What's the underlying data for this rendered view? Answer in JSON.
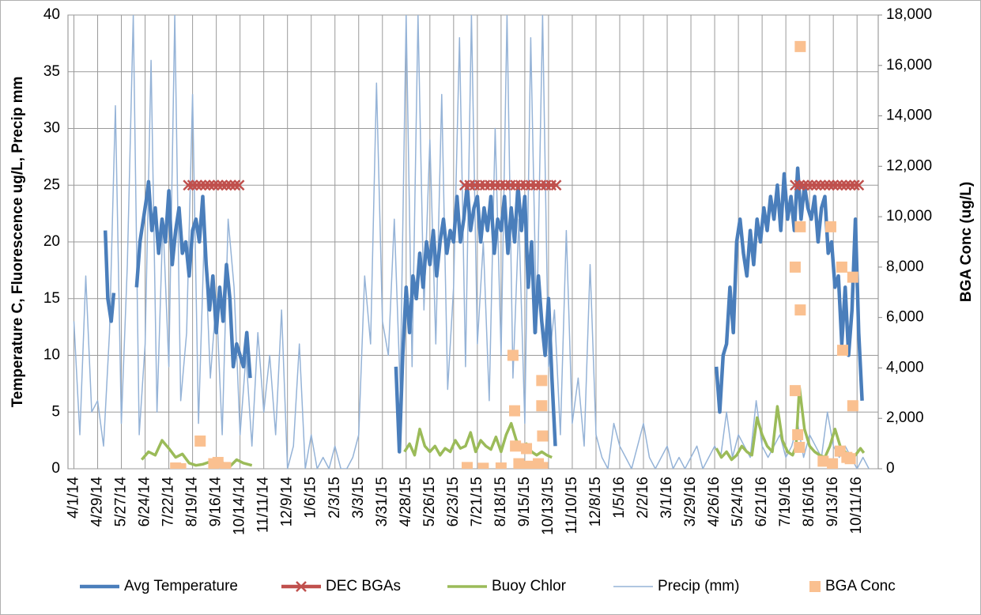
{
  "chart_data": {
    "type": "line",
    "y_label": "Temperature C, Fluorescence ug/L, Precip mm",
    "y2_label": "BGA Conc (ug/L)",
    "xlim": [
      -7,
      949
    ],
    "xticks": [
      {
        "value": 0,
        "label": "4/1/14"
      },
      {
        "value": 28,
        "label": "4/29/14"
      },
      {
        "value": 56,
        "label": "5/27/14"
      },
      {
        "value": 84,
        "label": "6/24/14"
      },
      {
        "value": 112,
        "label": "7/22/14"
      },
      {
        "value": 140,
        "label": "8/19/14"
      },
      {
        "value": 168,
        "label": "9/16/14"
      },
      {
        "value": 196,
        "label": "10/14/14"
      },
      {
        "value": 224,
        "label": "11/11/14"
      },
      {
        "value": 252,
        "label": "12/9/14"
      },
      {
        "value": 280,
        "label": "1/6/15"
      },
      {
        "value": 308,
        "label": "2/3/15"
      },
      {
        "value": 336,
        "label": "3/3/15"
      },
      {
        "value": 364,
        "label": "3/31/15"
      },
      {
        "value": 392,
        "label": "4/28/15"
      },
      {
        "value": 420,
        "label": "5/26/15"
      },
      {
        "value": 448,
        "label": "6/23/15"
      },
      {
        "value": 476,
        "label": "7/21/15"
      },
      {
        "value": 504,
        "label": "8/18/15"
      },
      {
        "value": 532,
        "label": "9/15/15"
      },
      {
        "value": 560,
        "label": "10/13/15"
      },
      {
        "value": 588,
        "label": "11/10/15"
      },
      {
        "value": 616,
        "label": "12/8/15"
      },
      {
        "value": 644,
        "label": "1/5/16"
      },
      {
        "value": 672,
        "label": "2/2/16"
      },
      {
        "value": 700,
        "label": "3/1/16"
      },
      {
        "value": 728,
        "label": "3/29/16"
      },
      {
        "value": 756,
        "label": "4/26/16"
      },
      {
        "value": 784,
        "label": "5/24/16"
      },
      {
        "value": 812,
        "label": "6/21/16"
      },
      {
        "value": 840,
        "label": "7/19/16"
      },
      {
        "value": 868,
        "label": "8/16/16"
      },
      {
        "value": 896,
        "label": "9/13/16"
      },
      {
        "value": 924,
        "label": "10/11/16"
      }
    ],
    "ylim": [
      0,
      40
    ],
    "yticks": [
      0,
      5,
      10,
      15,
      20,
      25,
      30,
      35,
      40
    ],
    "y2lim": [
      0,
      18000
    ],
    "y2ticks": [
      0,
      {
        "value": 2000,
        "label": "2,000"
      },
      {
        "value": 4000,
        "label": "4,000"
      },
      {
        "value": 6000,
        "label": "6,000"
      },
      {
        "value": 8000,
        "label": "8,000"
      },
      {
        "value": 10000,
        "label": "10,000"
      },
      {
        "value": 12000,
        "label": "12,000"
      },
      {
        "value": 14000,
        "label": "14,000"
      },
      {
        "value": 16000,
        "label": "16,000"
      },
      {
        "value": 18000,
        "label": "18,000"
      }
    ],
    "grid": true,
    "legend": "bottom",
    "series": [
      {
        "name": "Precip (mm)",
        "color": "#95b3d7",
        "width": 1.5,
        "x": [
          0,
          7,
          14,
          21,
          28,
          35,
          42,
          49,
          56,
          63,
          70,
          77,
          84,
          91,
          98,
          105,
          112,
          119,
          126,
          133,
          140,
          147,
          154,
          161,
          168,
          175,
          182,
          189,
          196,
          203,
          210,
          217,
          224,
          231,
          238,
          245,
          252,
          259,
          266,
          273,
          280,
          287,
          294,
          301,
          308,
          315,
          322,
          329,
          336,
          343,
          350,
          357,
          364,
          371,
          378,
          385,
          392,
          399,
          406,
          413,
          420,
          427,
          434,
          441,
          448,
          455,
          462,
          469,
          476,
          483,
          490,
          497,
          504,
          511,
          518,
          525,
          532,
          539,
          546,
          553,
          560,
          567,
          574,
          581,
          588,
          595,
          602,
          609,
          616,
          623,
          630,
          637,
          644,
          651,
          658,
          665,
          672,
          679,
          686,
          693,
          700,
          707,
          714,
          721,
          728,
          735,
          742,
          749,
          756,
          763,
          770,
          777,
          784,
          791,
          798,
          805,
          812,
          819,
          826,
          833,
          840,
          847,
          854,
          861,
          868,
          875,
          882,
          889,
          896,
          903,
          910,
          917,
          924,
          931,
          938
        ],
        "values": [
          13,
          3,
          17,
          5,
          6,
          2,
          12,
          32,
          4,
          18,
          40,
          3,
          11,
          36,
          5,
          22,
          9,
          40,
          6,
          12,
          33,
          4,
          21,
          8,
          15,
          3,
          22,
          16,
          3,
          10,
          2,
          12,
          5,
          10,
          3,
          14,
          0,
          2,
          11,
          0,
          3,
          0,
          1,
          0,
          2,
          0,
          0,
          1,
          3,
          17,
          11,
          34,
          13,
          10,
          22,
          7,
          40,
          9,
          40,
          14,
          29,
          11,
          33,
          7,
          16,
          38,
          9,
          40,
          11,
          20,
          6,
          30,
          10,
          40,
          8,
          22,
          4,
          38,
          12,
          40,
          9,
          14,
          3,
          21,
          4,
          8,
          2,
          18,
          3,
          1,
          0,
          4,
          2,
          1,
          0,
          2,
          4,
          1,
          0,
          1,
          2,
          0,
          1,
          0,
          1,
          2,
          0,
          1,
          2,
          1,
          5,
          1,
          3,
          2,
          1,
          6,
          2,
          1,
          2,
          3,
          1,
          2,
          4,
          1,
          3,
          2,
          1,
          5,
          2,
          1,
          2,
          1,
          0,
          1,
          0
        ]
      },
      {
        "name": "Avg Temperature",
        "color": "#4a7ebb",
        "width": 4.5,
        "x": [
          37,
          40,
          44,
          47,
          55,
          74,
          78,
          82,
          86,
          88,
          92,
          96,
          100,
          104,
          108,
          112,
          116,
          120,
          124,
          128,
          132,
          136,
          140,
          144,
          148,
          152,
          156,
          160,
          164,
          168,
          172,
          176,
          180,
          184,
          188,
          192,
          196,
          200,
          204,
          208,
          220,
          380,
          384,
          388,
          392,
          396,
          400,
          404,
          408,
          412,
          416,
          420,
          424,
          428,
          432,
          436,
          440,
          444,
          448,
          452,
          456,
          460,
          464,
          468,
          472,
          476,
          480,
          484,
          488,
          492,
          496,
          500,
          504,
          508,
          512,
          516,
          520,
          524,
          528,
          532,
          536,
          540,
          544,
          548,
          552,
          556,
          560,
          564,
          568,
          580,
          758,
          762,
          766,
          770,
          774,
          778,
          782,
          786,
          790,
          794,
          798,
          802,
          806,
          810,
          814,
          818,
          822,
          826,
          830,
          834,
          838,
          842,
          846,
          850,
          854,
          858,
          862,
          866,
          870,
          874,
          878,
          882,
          886,
          890,
          894,
          898,
          902,
          906,
          910,
          914,
          918,
          922,
          926,
          930
        ],
        "values": [
          21,
          15,
          13,
          15.5,
          null,
          16,
          20,
          22,
          24,
          25.3,
          21,
          23,
          19,
          22,
          20,
          24.5,
          18,
          21,
          23,
          19,
          20,
          17,
          21,
          22,
          20,
          24,
          18,
          14,
          17,
          12,
          16,
          13,
          18,
          15,
          9,
          11,
          10,
          9,
          12,
          8,
          null,
          9,
          1.5,
          10,
          16,
          12,
          17,
          15,
          19,
          16,
          20,
          18,
          21,
          17,
          20,
          22,
          19,
          21,
          20,
          24,
          20,
          22,
          25,
          21,
          23,
          24,
          20,
          23,
          21,
          24,
          19,
          22,
          21,
          24,
          19,
          23,
          20,
          25,
          21,
          24,
          16,
          20,
          12,
          17,
          13,
          10,
          15,
          8,
          2,
          null,
          9,
          5,
          10,
          11,
          16,
          12,
          20,
          22,
          19,
          17,
          21,
          18,
          22,
          20,
          23,
          21,
          24,
          22,
          25,
          21,
          26,
          22,
          24,
          21,
          26.5,
          22,
          25,
          23,
          22,
          24,
          20,
          23,
          24,
          19,
          20,
          16,
          17,
          11,
          16,
          10,
          14,
          22,
          12,
          6
        ]
      },
      {
        "name": "DEC BGAs",
        "color": "#c0504d",
        "width": 4.5,
        "marker": "x",
        "x": [
          135,
          140,
          145,
          150,
          155,
          160,
          165,
          170,
          175,
          180,
          185,
          190,
          195,
          300,
          461,
          467,
          473,
          479,
          485,
          491,
          497,
          503,
          509,
          515,
          521,
          527,
          533,
          539,
          545,
          551,
          557,
          563,
          569,
          700,
          851,
          856,
          861,
          866,
          871,
          876,
          881,
          886,
          891,
          896,
          901,
          906,
          911,
          916,
          921,
          926
        ],
        "values": [
          25,
          25,
          25,
          25,
          25,
          25,
          25,
          25,
          25,
          25,
          25,
          25,
          25,
          null,
          25,
          25,
          25,
          25,
          25,
          25,
          25,
          25,
          25,
          25,
          25,
          25,
          25,
          25,
          25,
          25,
          25,
          25,
          25,
          null,
          25,
          25,
          25,
          25,
          25,
          25,
          25,
          25,
          25,
          25,
          25,
          25,
          25,
          25,
          25,
          25
        ]
      },
      {
        "name": "Buoy Chlor",
        "color": "#9bbb59",
        "width": 3.5,
        "x": [
          80,
          88,
          96,
          104,
          112,
          120,
          128,
          136,
          144,
          152,
          160,
          168,
          176,
          184,
          192,
          200,
          210,
          300,
          390,
          396,
          402,
          408,
          414,
          420,
          426,
          432,
          438,
          444,
          450,
          456,
          462,
          468,
          474,
          480,
          486,
          492,
          498,
          504,
          510,
          516,
          522,
          528,
          534,
          540,
          546,
          552,
          558,
          564,
          600,
          758,
          764,
          770,
          776,
          782,
          788,
          794,
          800,
          806,
          812,
          818,
          824,
          830,
          836,
          842,
          848,
          852,
          856,
          862,
          868,
          874,
          880,
          886,
          892,
          898,
          904,
          910,
          916,
          922,
          928,
          932
        ],
        "values": [
          0.8,
          1.5,
          1.2,
          2.5,
          1.8,
          1,
          1.3,
          0.5,
          0.3,
          0.4,
          0.6,
          0.3,
          0.5,
          0.2,
          0.8,
          0.5,
          0.3,
          null,
          1.5,
          2.2,
          1.2,
          3.5,
          2,
          1.5,
          2,
          1.2,
          1.8,
          1.5,
          2.5,
          1.8,
          2,
          3.2,
          1.5,
          2.5,
          2,
          1.7,
          2.8,
          1.5,
          3,
          4,
          2.5,
          1.8,
          2.2,
          1.5,
          1.2,
          1.5,
          1.2,
          1,
          null,
          1.8,
          1,
          1.5,
          0.8,
          1.2,
          2,
          1.5,
          1.2,
          4.5,
          3,
          2,
          1.5,
          5.5,
          2.5,
          1.5,
          1.2,
          2,
          7.2,
          3.5,
          2,
          1.5,
          1.2,
          1,
          2,
          3.5,
          2,
          1.5,
          1,
          1.2,
          1.8,
          1.4
        ]
      },
      {
        "name": "BGA Conc",
        "color": "#fac090",
        "marker": "square",
        "axis": "y2",
        "line": false,
        "x": [
          120,
          126,
          149,
          165,
          170,
          179,
          464,
          483,
          504,
          518,
          520,
          521,
          525,
          534,
          536,
          548,
          552,
          552,
          553,
          553,
          857,
          851,
          857,
          857,
          851,
          854,
          856,
          893,
          906,
          919,
          907,
          919,
          884,
          895,
          904,
          912,
          916
        ],
        "values": [
          30,
          0,
          1100,
          200,
          250,
          50,
          50,
          20,
          30,
          4500,
          2300,
          900,
          200,
          800,
          100,
          200,
          3500,
          2500,
          1300,
          50,
          16750,
          8000,
          9600,
          6300,
          3100,
          1350,
          850,
          9600,
          8000,
          7600,
          4700,
          2500,
          300,
          200,
          700,
          450,
          400
        ]
      }
    ]
  }
}
